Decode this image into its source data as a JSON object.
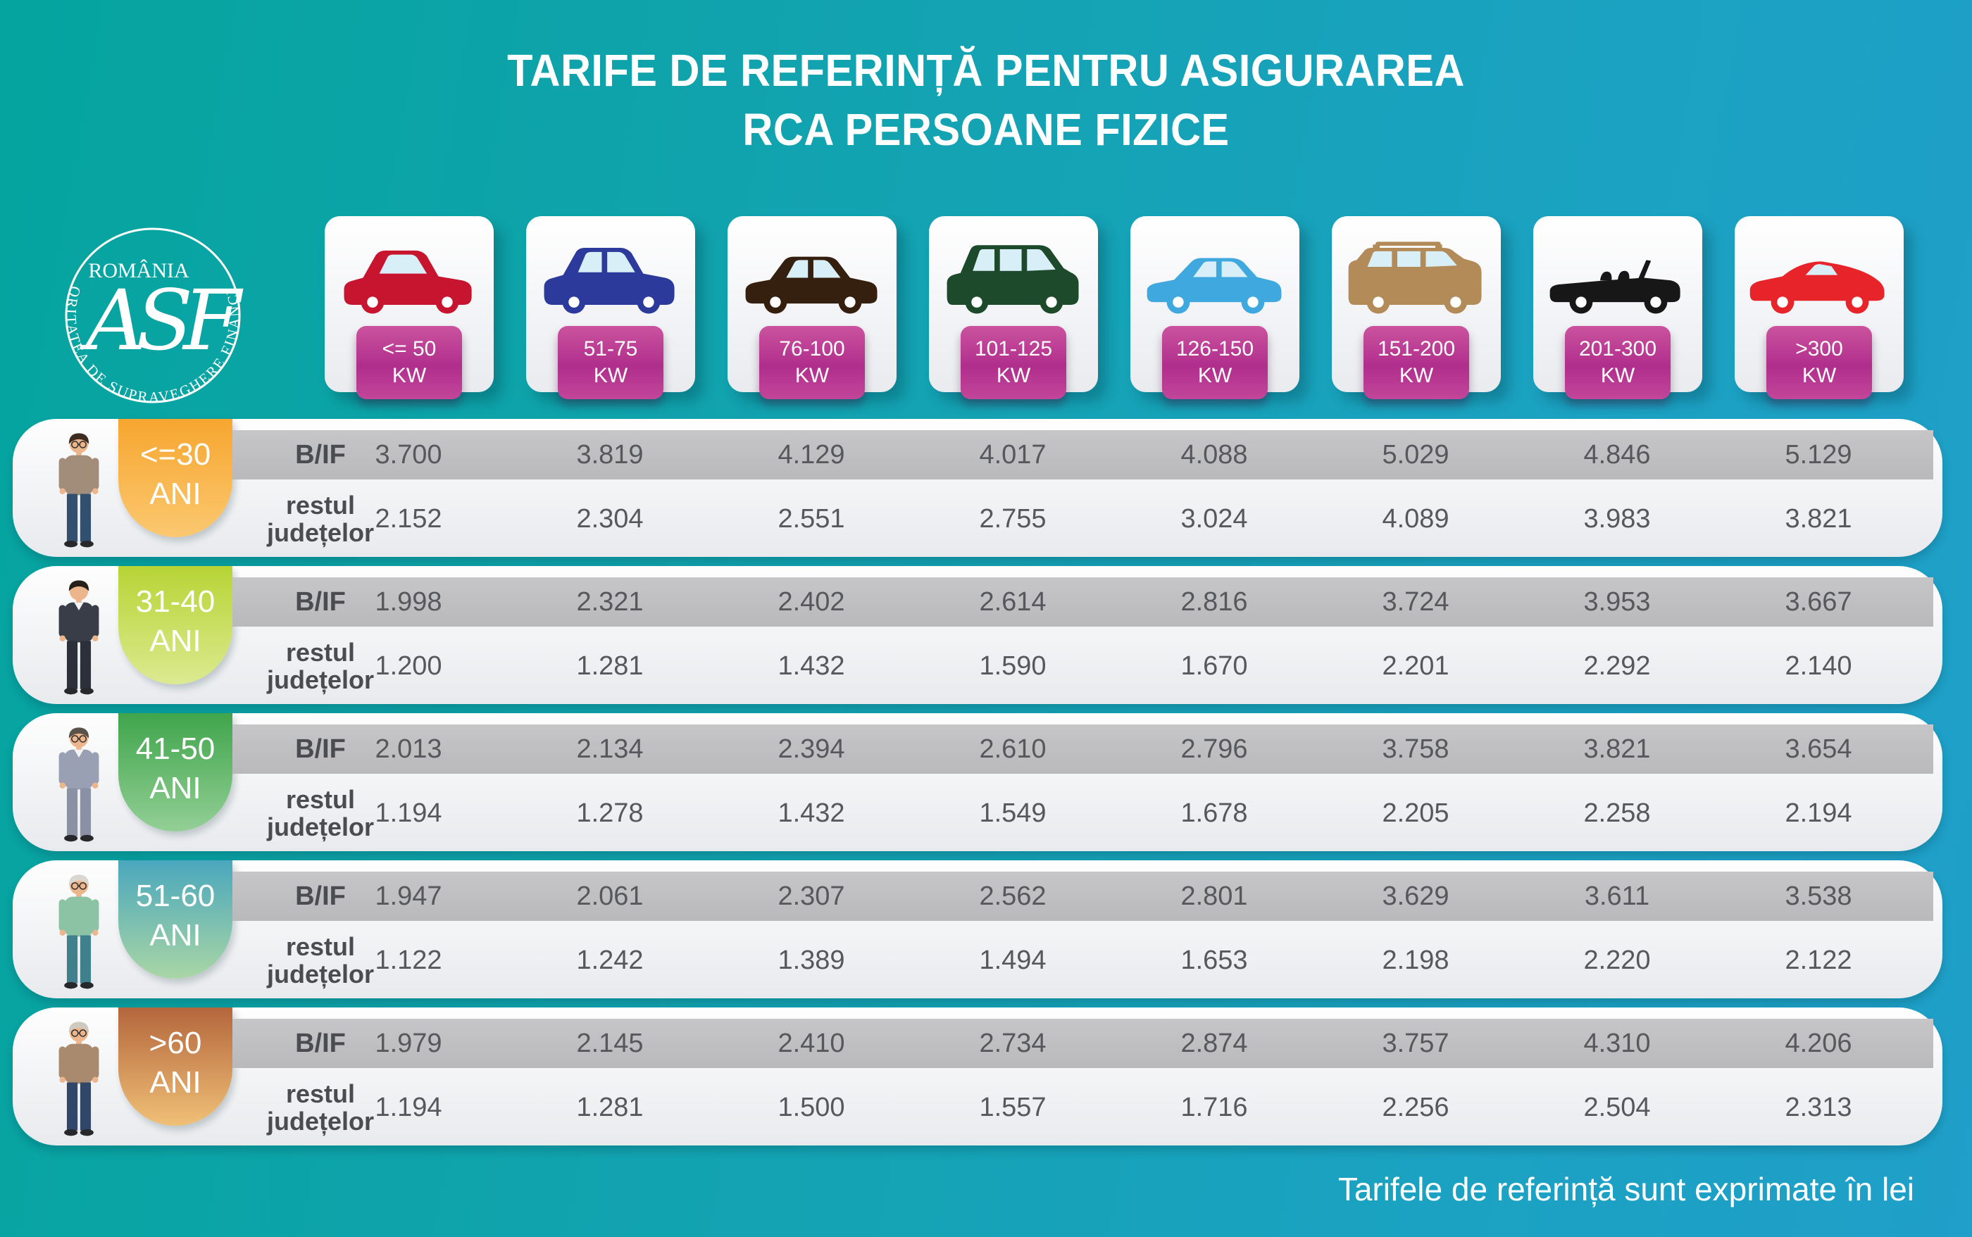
{
  "title": {
    "line1": "TARIFE DE REFERINȚĂ PENTRU ASIGURAREA",
    "line2": "RCA PERSOANE FIZICE"
  },
  "logo": {
    "country": "ROMÂNIA",
    "organization": "AUTORITATEA DE SUPRAVEGHERE FINANCIARĂ",
    "monogram": "ASF"
  },
  "row_labels": {
    "bif": "B/IF",
    "rest_line1": "restul",
    "rest_line2": "județelor"
  },
  "power_columns": [
    {
      "range": "<= 50",
      "unit": "KW",
      "car": "city-hatchback",
      "car_color": "#c8152f"
    },
    {
      "range": "51-75",
      "unit": "KW",
      "car": "crossover",
      "car_color": "#2b3a9b"
    },
    {
      "range": "76-100",
      "unit": "KW",
      "car": "sedan",
      "car_color": "#35200f"
    },
    {
      "range": "101-125",
      "unit": "KW",
      "car": "minivan",
      "car_color": "#1c4a2b"
    },
    {
      "range": "126-150",
      "unit": "KW",
      "car": "sedan-modern",
      "car_color": "#3fa8df"
    },
    {
      "range": "151-200",
      "unit": "KW",
      "car": "suv-large",
      "car_color": "#b28b58"
    },
    {
      "range": "201-300",
      "unit": "KW",
      "car": "convertible",
      "car_color": "#171717"
    },
    {
      "range": ">300",
      "unit": "KW",
      "car": "sports-car",
      "car_color": "#e8242b"
    }
  ],
  "age_rows": [
    {
      "age": "<=30",
      "age_unit": "ANI",
      "bubble_top": "#f7a62f",
      "bubble_bottom": "#fbc870",
      "avatar": {
        "skin": "#ecb58b",
        "hair": "#3c2b1e",
        "top": "#a18d7a",
        "bottom": "#31506f",
        "glasses": true,
        "shirt": false
      },
      "bif": [
        "3.700",
        "3.819",
        "4.129",
        "4.017",
        "4.088",
        "5.029",
        "4.846",
        "5.129"
      ],
      "rest": [
        "2.152",
        "2.304",
        "2.551",
        "2.755",
        "3.024",
        "4.089",
        "3.983",
        "3.821"
      ]
    },
    {
      "age": "31-40",
      "age_unit": "ANI",
      "bubble_top": "#b7d435",
      "bubble_bottom": "#dcea90",
      "avatar": {
        "skin": "#ecb58b",
        "hair": "#26201a",
        "top": "#383d47",
        "bottom": "#2b303a",
        "glasses": false,
        "shirt": true
      },
      "bif": [
        "1.998",
        "2.321",
        "2.402",
        "2.614",
        "2.816",
        "3.724",
        "3.953",
        "3.667"
      ],
      "rest": [
        "1.200",
        "1.281",
        "1.432",
        "1.590",
        "1.670",
        "2.201",
        "2.292",
        "2.140"
      ]
    },
    {
      "age": "41-50",
      "age_unit": "ANI",
      "bubble_top": "#3fa54b",
      "bubble_bottom": "#93cf96",
      "avatar": {
        "skin": "#ecb58b",
        "hair": "#5a5248",
        "top": "#9aa0b4",
        "bottom": "#8b91a5",
        "glasses": true,
        "shirt": true
      },
      "bif": [
        "2.013",
        "2.134",
        "2.394",
        "2.610",
        "2.796",
        "3.758",
        "3.821",
        "3.654"
      ],
      "rest": [
        "1.194",
        "1.278",
        "1.432",
        "1.549",
        "1.678",
        "2.205",
        "2.258",
        "2.194"
      ]
    },
    {
      "age": "51-60",
      "age_unit": "ANI",
      "bubble_top": "#4aa7bd",
      "bubble_bottom": "#a9d6a5",
      "avatar": {
        "skin": "#ecb58b",
        "hair": "#d9d7d0",
        "top": "#8cc3a4",
        "bottom": "#40808d",
        "glasses": true,
        "shirt": false
      },
      "bif": [
        "1.947",
        "2.061",
        "2.307",
        "2.562",
        "2.801",
        "3.629",
        "3.611",
        "3.538"
      ],
      "rest": [
        "1.122",
        "1.242",
        "1.389",
        "1.494",
        "1.653",
        "2.198",
        "2.220",
        "2.122"
      ]
    },
    {
      "age": ">60",
      "age_unit": "ANI",
      "bubble_top": "#b4663c",
      "bubble_bottom": "#f0c077",
      "avatar": {
        "skin": "#ecb58b",
        "hair": "#cfc9c0",
        "top": "#a98a6e",
        "bottom": "#31476a",
        "glasses": true,
        "shirt": false
      },
      "bif": [
        "1.979",
        "2.145",
        "2.410",
        "2.734",
        "2.874",
        "3.757",
        "4.310",
        "4.206"
      ],
      "rest": [
        "1.194",
        "1.281",
        "1.500",
        "1.557",
        "1.716",
        "2.256",
        "2.504",
        "2.313"
      ]
    }
  ],
  "footer": "Tarifele de referință sunt exprimate în lei",
  "colors": {
    "background_left": "#05a49e",
    "background_right": "#1f9fc9",
    "badge_magenta": "#b02e8c",
    "band_gray": "#bebec0",
    "text_dark": "#57585c"
  },
  "chart_data": {
    "type": "table",
    "title": "TARIFE DE REFERINȚĂ PENTRU ASIGURAREA RCA PERSOANE FIZICE",
    "unit_note": "Tarifele de referință sunt exprimate în lei",
    "columns_kw": [
      "<=50",
      "51-75",
      "76-100",
      "101-125",
      "126-150",
      "151-200",
      "201-300",
      ">300"
    ],
    "rows": [
      {
        "age": "<=30 ANI",
        "region": "B/IF",
        "values": [
          3700,
          3819,
          4129,
          4017,
          4088,
          5029,
          4846,
          5129
        ]
      },
      {
        "age": "<=30 ANI",
        "region": "restul județelor",
        "values": [
          2152,
          2304,
          2551,
          2755,
          3024,
          4089,
          3983,
          3821
        ]
      },
      {
        "age": "31-40 ANI",
        "region": "B/IF",
        "values": [
          1998,
          2321,
          2402,
          2614,
          2816,
          3724,
          3953,
          3667
        ]
      },
      {
        "age": "31-40 ANI",
        "region": "restul județelor",
        "values": [
          1200,
          1281,
          1432,
          1590,
          1670,
          2201,
          2292,
          2140
        ]
      },
      {
        "age": "41-50 ANI",
        "region": "B/IF",
        "values": [
          2013,
          2134,
          2394,
          2610,
          2796,
          3758,
          3821,
          3654
        ]
      },
      {
        "age": "41-50 ANI",
        "region": "restul județelor",
        "values": [
          1194,
          1278,
          1432,
          1549,
          1678,
          2205,
          2258,
          2194
        ]
      },
      {
        "age": "51-60 ANI",
        "region": "B/IF",
        "values": [
          1947,
          2061,
          2307,
          2562,
          2801,
          3629,
          3611,
          3538
        ]
      },
      {
        "age": "51-60 ANI",
        "region": "restul județelor",
        "values": [
          1122,
          1242,
          1389,
          1494,
          1653,
          2198,
          2220,
          2122
        ]
      },
      {
        "age": ">60 ANI",
        "region": "B/IF",
        "values": [
          1979,
          2145,
          2410,
          2734,
          2874,
          3757,
          4310,
          4206
        ]
      },
      {
        "age": ">60 ANI",
        "region": "restul județelor",
        "values": [
          1194,
          1281,
          1500,
          1557,
          1716,
          2256,
          2504,
          2313
        ]
      }
    ]
  }
}
